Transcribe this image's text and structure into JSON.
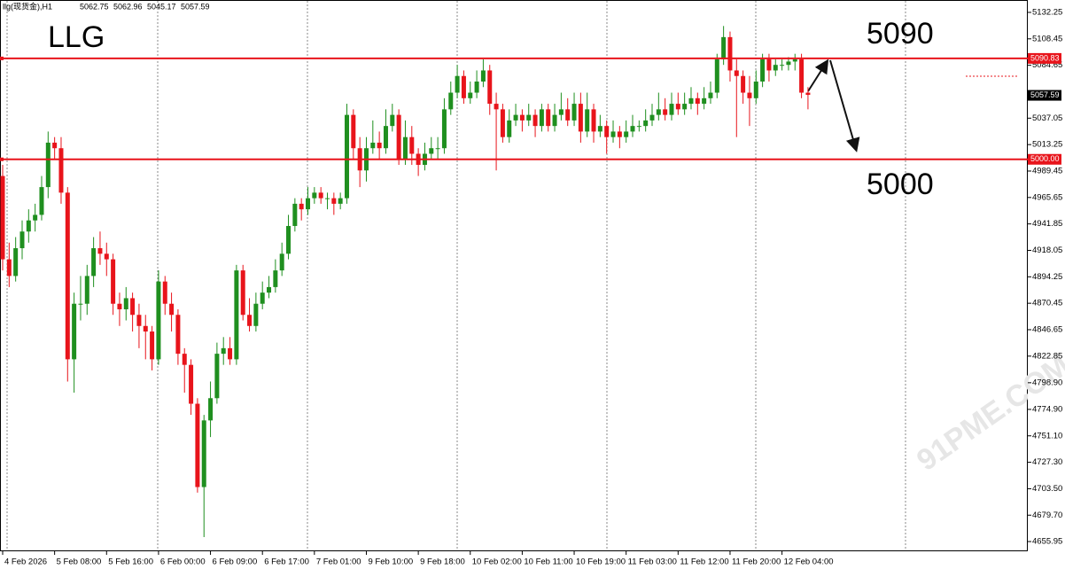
{
  "chart_data": {
    "type": "candlestick",
    "symbol": "llg(现货金),H1",
    "header_values": [
      5062.75,
      5062.96,
      5045.17,
      5057.59
    ],
    "annotations": [
      "LLG",
      "5090",
      "5000"
    ],
    "watermark": "91PME.COM",
    "up_color": "#1f8f1f",
    "down_color": "#e8141b",
    "ylim": [
      4647.2,
      5143.4
    ],
    "yticks": [
      5132.25,
      5108.45,
      5084.65,
      5037.05,
      5013.25,
      4989.45,
      4965.65,
      4941.85,
      4918.05,
      4894.25,
      4870.45,
      4846.65,
      4822.85,
      {
        "value": 4798.9,
        "label": "4798.90"
      },
      {
        "value": 4774.9,
        "label": "4774.90"
      },
      {
        "value": 4751.1,
        "label": "4751.10"
      },
      {
        "value": 4727.3,
        "label": "4727.30"
      },
      {
        "value": 4703.5,
        "label": "4703.50"
      },
      {
        "value": 4679.7,
        "label": "4679.70"
      },
      4655.95
    ],
    "levels": [
      {
        "value": 5090.83,
        "label": "5090.83"
      },
      {
        "value": 5000,
        "label": "5000.00"
      }
    ],
    "last_price": 5057.59,
    "categories": [
      "4 Feb 2026",
      null,
      null,
      null,
      null,
      null,
      null,
      null,
      "5 Feb 08:00",
      null,
      null,
      null,
      null,
      null,
      null,
      null,
      "5 Feb 16:00",
      null,
      null,
      null,
      null,
      null,
      null,
      null,
      "6 Feb 00:00",
      null,
      null,
      null,
      null,
      null,
      null,
      null,
      "6 Feb 09:00",
      null,
      null,
      null,
      null,
      null,
      null,
      null,
      "6 Feb 17:00",
      null,
      null,
      null,
      null,
      null,
      null,
      null,
      "7 Feb 01:00",
      null,
      null,
      null,
      null,
      null,
      null,
      null,
      "9 Feb 10:00",
      null,
      null,
      null,
      null,
      null,
      null,
      null,
      "9 Feb 18:00",
      null,
      null,
      null,
      null,
      null,
      null,
      null,
      "10 Feb 02:00",
      null,
      null,
      null,
      null,
      null,
      null,
      null,
      "10 Feb 11:00",
      null,
      null,
      null,
      null,
      null,
      null,
      null,
      "10 Feb 19:00",
      null,
      null,
      null,
      null,
      null,
      null,
      null,
      "11 Feb 03:00",
      null,
      null,
      null,
      null,
      null,
      null,
      null,
      "11 Feb 12:00",
      null,
      null,
      null,
      null,
      null,
      null,
      null,
      "11 Feb 20:00",
      null,
      null,
      null,
      null,
      null,
      null,
      null,
      "12 Feb 04:00",
      null,
      null,
      null,
      null
    ],
    "ohlc": [
      [
        4985,
        4995,
        4900,
        4910
      ],
      [
        4910,
        4925,
        4885,
        4895
      ],
      [
        4895,
        4930,
        4890,
        4920
      ],
      [
        4920,
        4945,
        4910,
        4935
      ],
      [
        4935,
        4955,
        4925,
        4945
      ],
      [
        4945,
        4960,
        4935,
        4950
      ],
      [
        4950,
        4985,
        4945,
        4975
      ],
      [
        4975,
        5025,
        4965,
        5015
      ],
      [
        5015,
        5020,
        5000,
        5010
      ],
      [
        5010,
        5020,
        4960,
        4970
      ],
      [
        4970,
        4975,
        4800,
        4820
      ],
      [
        4820,
        4880,
        4790,
        4870
      ],
      [
        4870,
        4895,
        4855,
        4870
      ],
      [
        4870,
        4905,
        4860,
        4895
      ],
      [
        4895,
        4930,
        4885,
        4920
      ],
      [
        4920,
        4935,
        4905,
        4915
      ],
      [
        4915,
        4925,
        4895,
        4910
      ],
      [
        4910,
        4915,
        4860,
        4870
      ],
      [
        4870,
        4880,
        4850,
        4865
      ],
      [
        4865,
        4885,
        4855,
        4875
      ],
      [
        4875,
        4880,
        4845,
        4860
      ],
      [
        4860,
        4870,
        4830,
        4850
      ],
      [
        4850,
        4860,
        4820,
        4845
      ],
      [
        4845,
        4850,
        4810,
        4820
      ],
      [
        4820,
        4900,
        4815,
        4890
      ],
      [
        4890,
        4895,
        4860,
        4870
      ],
      [
        4870,
        4880,
        4845,
        4860
      ],
      [
        4860,
        4865,
        4815,
        4825
      ],
      [
        4825,
        4830,
        4790,
        4815
      ],
      [
        4815,
        4820,
        4770,
        4780
      ],
      [
        4780,
        4785,
        4700,
        4705
      ],
      [
        4705,
        4770,
        4660,
        4765
      ],
      [
        4765,
        4800,
        4750,
        4785
      ],
      [
        4785,
        4835,
        4780,
        4825
      ],
      [
        4825,
        4840,
        4815,
        4830
      ],
      [
        4830,
        4840,
        4815,
        4820
      ],
      [
        4820,
        4905,
        4815,
        4900
      ],
      [
        4900,
        4905,
        4855,
        4860
      ],
      [
        4860,
        4875,
        4845,
        4850
      ],
      [
        4850,
        4880,
        4845,
        4870
      ],
      [
        4870,
        4890,
        4865,
        4880
      ],
      [
        4880,
        4895,
        4875,
        4885
      ],
      [
        4885,
        4910,
        4880,
        4900
      ],
      [
        4900,
        4925,
        4895,
        4915
      ],
      [
        4915,
        4950,
        4910,
        4940
      ],
      [
        4940,
        4965,
        4935,
        4960
      ],
      [
        4960,
        4965,
        4945,
        4955
      ],
      [
        4955,
        4975,
        4950,
        4965
      ],
      [
        4965,
        4975,
        4960,
        4970
      ],
      [
        4970,
        4975,
        4960,
        4965
      ],
      [
        4965,
        4970,
        4955,
        4965
      ],
      [
        4965,
        4970,
        4950,
        4960
      ],
      [
        4960,
        4970,
        4955,
        4965
      ],
      [
        4965,
        5050,
        4960,
        5040
      ],
      [
        5040,
        5045,
        5000,
        5010
      ],
      [
        5010,
        5020,
        4975,
        4990
      ],
      [
        4990,
        5020,
        4980,
        5010
      ],
      [
        5010,
        5035,
        5005,
        5015
      ],
      [
        5015,
        5025,
        5000,
        5010
      ],
      [
        5010,
        5045,
        5005,
        5030
      ],
      [
        5030,
        5050,
        5025,
        5040
      ],
      [
        5040,
        5045,
        4995,
        5000
      ],
      [
        5000,
        5035,
        4995,
        5020
      ],
      [
        5020,
        5030,
        4995,
        5005
      ],
      [
        5005,
        5010,
        4985,
        4995
      ],
      [
        4995,
        5015,
        4990,
        5005
      ],
      [
        5005,
        5020,
        5000,
        5010
      ],
      [
        5010,
        5020,
        5000,
        5010
      ],
      [
        5010,
        5055,
        5005,
        5045
      ],
      [
        5045,
        5070,
        5040,
        5060
      ],
      [
        5060,
        5085,
        5055,
        5075
      ],
      [
        5075,
        5080,
        5050,
        5055
      ],
      [
        5055,
        5070,
        5050,
        5060
      ],
      [
        5060,
        5080,
        5055,
        5070
      ],
      [
        5070,
        5090,
        5065,
        5080
      ],
      [
        5080,
        5085,
        5040,
        5050
      ],
      [
        5050,
        5060,
        4990,
        5045
      ],
      [
        5045,
        5050,
        5015,
        5020
      ],
      [
        5020,
        5045,
        5015,
        5035
      ],
      [
        5035,
        5050,
        5030,
        5040
      ],
      [
        5040,
        5045,
        5025,
        5035
      ],
      [
        5035,
        5050,
        5030,
        5040
      ],
      [
        5040,
        5045,
        5020,
        5030
      ],
      [
        5030,
        5050,
        5025,
        5045
      ],
      [
        5045,
        5050,
        5025,
        5030
      ],
      [
        5030,
        5050,
        5025,
        5040
      ],
      [
        5040,
        5060,
        5035,
        5045
      ],
      [
        5045,
        5055,
        5030,
        5035
      ],
      [
        5035,
        5060,
        5030,
        5050
      ],
      [
        5050,
        5060,
        5015,
        5025
      ],
      [
        5025,
        5060,
        5020,
        5045
      ],
      [
        5045,
        5050,
        5015,
        5025
      ],
      [
        5025,
        5040,
        5020,
        5030
      ],
      [
        5030,
        5035,
        5005,
        5020
      ],
      [
        5020,
        5035,
        5015,
        5025
      ],
      [
        5025,
        5030,
        5010,
        5020
      ],
      [
        5020,
        5035,
        5015,
        5025
      ],
      [
        5025,
        5040,
        5020,
        5030
      ],
      [
        5030,
        5035,
        5025,
        5030
      ],
      [
        5030,
        5045,
        5025,
        5035
      ],
      [
        5035,
        5050,
        5030,
        5040
      ],
      [
        5040,
        5060,
        5035,
        5045
      ],
      [
        5045,
        5055,
        5035,
        5040
      ],
      [
        5040,
        5060,
        5035,
        5050
      ],
      [
        5050,
        5060,
        5040,
        5045
      ],
      [
        5045,
        5060,
        5040,
        5050
      ],
      [
        5050,
        5065,
        5045,
        5055
      ],
      [
        5055,
        5060,
        5040,
        5050
      ],
      [
        5050,
        5065,
        5045,
        5055
      ],
      [
        5055,
        5070,
        5050,
        5060
      ],
      [
        5060,
        5095,
        5055,
        5090
      ],
      [
        5090,
        5120,
        5085,
        5110
      ],
      [
        5110,
        5115,
        5070,
        5080
      ],
      [
        5080,
        5090,
        5020,
        5075
      ],
      [
        5075,
        5080,
        5050,
        5060
      ],
      [
        5060,
        5075,
        5030,
        5055
      ],
      [
        5055,
        5080,
        5050,
        5070
      ],
      [
        5070,
        5095,
        5065,
        5090
      ],
      [
        5090,
        5095,
        5070,
        5080
      ],
      [
        5080,
        5090,
        5075,
        5085
      ],
      [
        5085,
        5090,
        5080,
        5085
      ],
      [
        5085,
        5092,
        5080,
        5088
      ],
      [
        5088,
        5095,
        5080,
        5090
      ],
      [
        5090,
        5095,
        5055,
        5060
      ],
      [
        5060,
        5065,
        5045,
        5058
      ]
    ]
  }
}
